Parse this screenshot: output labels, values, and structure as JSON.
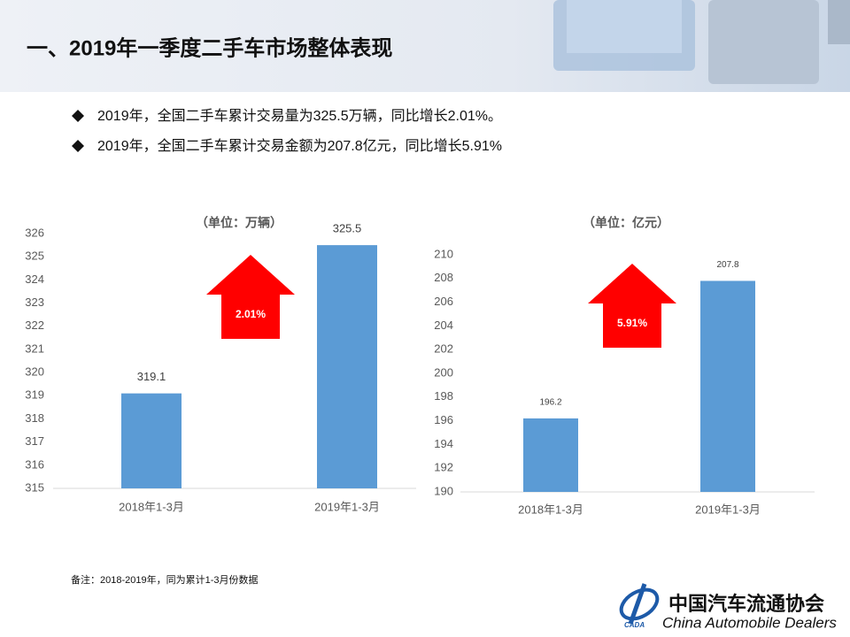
{
  "header": {
    "title": "一、2019年一季度二手车市场整体表现"
  },
  "bullets": [
    "2019年，全国二手车累计交易量为325.5万辆，同比增长2.01%。",
    "2019年，全国二手车累计交易金额为207.8亿元，同比增长5.91%"
  ],
  "chart_data": [
    {
      "type": "bar",
      "title": "（单位：万辆）",
      "categories": [
        "2018年1-3月",
        "2019年1-3月"
      ],
      "values": [
        319.1,
        325.5
      ],
      "color": "#5b9bd5",
      "ylim": [
        315,
        326
      ],
      "yticks": [
        315,
        316,
        317,
        318,
        319,
        320,
        321,
        322,
        323,
        324,
        325,
        326
      ],
      "annotation": "2.01%"
    },
    {
      "type": "bar",
      "title": "（单位：亿元）",
      "categories": [
        "2018年1-3月",
        "2019年1-3月"
      ],
      "values": [
        196.2,
        207.8
      ],
      "color": "#5b9bd5",
      "ylim": [
        190,
        210
      ],
      "yticks": [
        190,
        192,
        194,
        196,
        198,
        200,
        202,
        204,
        206,
        208,
        210
      ],
      "annotation": "5.91%"
    }
  ],
  "note": "备注：2018-2019年，同为累计1-3月份数据",
  "logo": {
    "name": "中国汽车流通协会",
    "english": "China Automobile Dealers",
    "abbr": "CADA"
  }
}
